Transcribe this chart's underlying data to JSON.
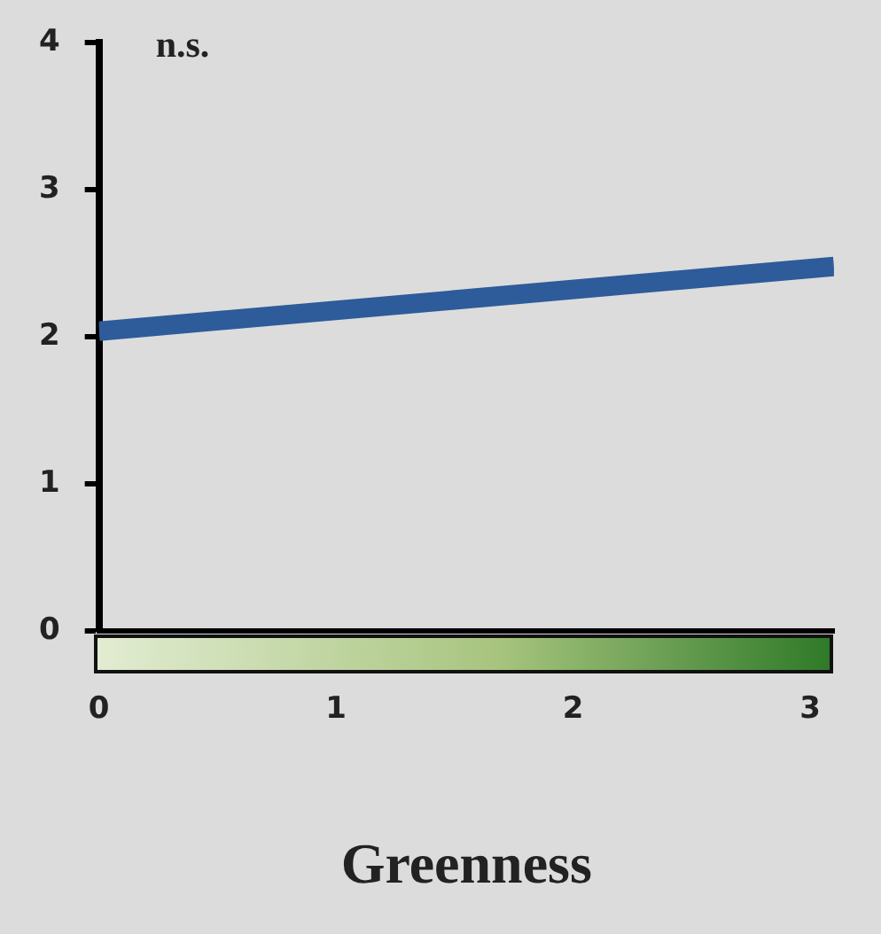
{
  "chart_data": {
    "type": "line",
    "xlabel": "Greenness",
    "annotations": [
      "n.s."
    ],
    "series": [
      {
        "color": "#2e5b9a",
        "x": [
          0,
          3.1
        ],
        "values": [
          2.04,
          2.48
        ]
      }
    ],
    "xlim": [
      0,
      3.1
    ],
    "xticks": [
      0,
      1,
      2,
      3
    ],
    "ylim": [
      0,
      4
    ],
    "yticks": [
      0,
      1,
      2,
      3,
      4
    ],
    "grid": false,
    "legend": false,
    "marker": "none",
    "line_style": "solid"
  }
}
